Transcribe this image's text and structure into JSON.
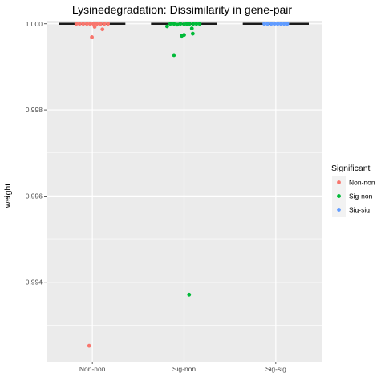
{
  "chart_data": {
    "type": "scatter",
    "title": "Lysinedegradation: Dissimilarity in gene-pair",
    "xlabel": "",
    "ylabel": "weight",
    "categories": [
      "Non-non",
      "Sig-non",
      "Sig-sig"
    ],
    "ylim": [
      0.99215,
      1.00007
    ],
    "y_ticks": [
      0.994,
      0.996,
      0.998,
      1.0
    ],
    "y_tick_labels": [
      "0.994",
      "0.996",
      "0.998",
      "1.000"
    ],
    "grid": true,
    "legend": {
      "title": "Significant",
      "position": "right",
      "entries": [
        "Non-non",
        "Sig-non",
        "Sig-sig"
      ]
    },
    "colors": {
      "Non-non": "#F8766D",
      "Sig-non": "#00BA38",
      "Sig-sig": "#619CFF",
      "panel": "#EBEBEB",
      "grid": "#FFFFFF",
      "box": "#1a1a1a"
    },
    "boxes": [
      {
        "category": "Non-non",
        "median": 1.0,
        "q1": 1.0,
        "q3": 1.0
      },
      {
        "category": "Sig-non",
        "median": 1.0,
        "q1": 1.0,
        "q3": 1.0
      },
      {
        "category": "Sig-sig",
        "median": 1.0,
        "q1": 1.0,
        "q3": 1.0
      }
    ],
    "series": [
      {
        "name": "Non-non",
        "category": "Non-non",
        "points": [
          {
            "jitter": -0.35,
            "y": 1.0
          },
          {
            "jitter": -0.28,
            "y": 1.0
          },
          {
            "jitter": -0.2,
            "y": 1.0
          },
          {
            "jitter": -0.12,
            "y": 1.0
          },
          {
            "jitter": -0.05,
            "y": 1.0
          },
          {
            "jitter": 0.02,
            "y": 1.0
          },
          {
            "jitter": 0.1,
            "y": 1.0
          },
          {
            "jitter": 0.18,
            "y": 1.0
          },
          {
            "jitter": 0.26,
            "y": 1.0
          },
          {
            "jitter": 0.34,
            "y": 1.0
          },
          {
            "jitter": 0.05,
            "y": 0.99993
          },
          {
            "jitter": 0.22,
            "y": 0.99987
          },
          {
            "jitter": -0.01,
            "y": 0.99969
          },
          {
            "jitter": -0.07,
            "y": 0.99252
          }
        ]
      },
      {
        "name": "Sig-non",
        "category": "Sig-non",
        "points": [
          {
            "jitter": -0.37,
            "y": 0.99994
          },
          {
            "jitter": -0.3,
            "y": 1.0
          },
          {
            "jitter": -0.22,
            "y": 1.0
          },
          {
            "jitter": -0.15,
            "y": 0.99998
          },
          {
            "jitter": -0.08,
            "y": 1.0
          },
          {
            "jitter": 0.0,
            "y": 0.99999
          },
          {
            "jitter": 0.06,
            "y": 1.0
          },
          {
            "jitter": 0.12,
            "y": 1.0
          },
          {
            "jitter": 0.2,
            "y": 1.0
          },
          {
            "jitter": 0.27,
            "y": 1.0
          },
          {
            "jitter": 0.34,
            "y": 1.0
          },
          {
            "jitter": 0.17,
            "y": 0.99989
          },
          {
            "jitter": 0.19,
            "y": 0.99977
          },
          {
            "jitter": -0.05,
            "y": 0.99972
          },
          {
            "jitter": 0.0,
            "y": 0.99974
          },
          {
            "jitter": -0.22,
            "y": 0.99927
          },
          {
            "jitter": 0.11,
            "y": 0.99371
          }
        ]
      },
      {
        "name": "Sig-sig",
        "category": "Sig-sig",
        "points": [
          {
            "jitter": -0.25,
            "y": 1.0
          },
          {
            "jitter": -0.18,
            "y": 1.0
          },
          {
            "jitter": -0.1,
            "y": 1.0
          },
          {
            "jitter": -0.03,
            "y": 1.0
          },
          {
            "jitter": 0.04,
            "y": 1.0
          },
          {
            "jitter": 0.11,
            "y": 1.0
          },
          {
            "jitter": 0.18,
            "y": 1.0
          },
          {
            "jitter": 0.25,
            "y": 1.0
          }
        ]
      }
    ]
  }
}
